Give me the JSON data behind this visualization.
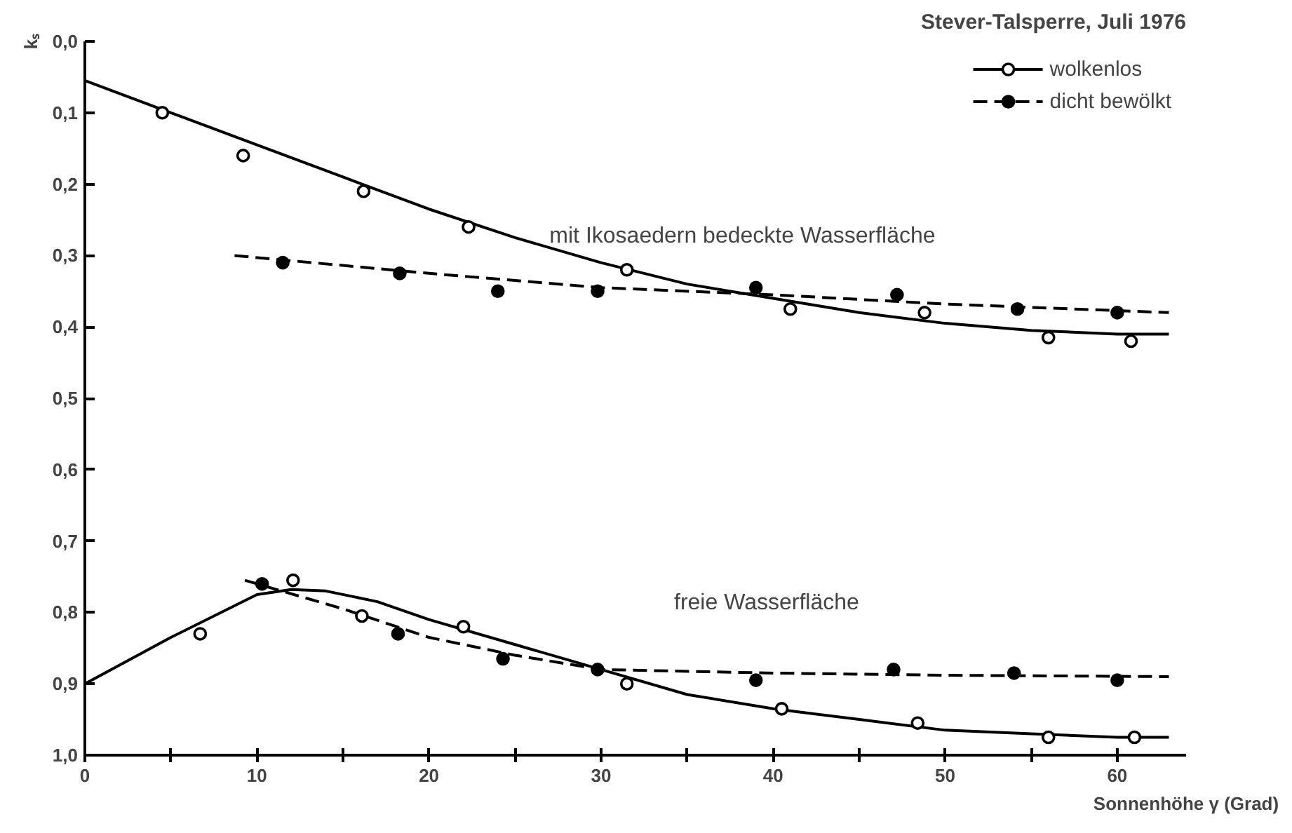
{
  "chart_data": {
    "type": "scatter",
    "title": "Stever-Talsperre, Juli 1976",
    "xlabel": "Sonnenhöhe γ (Grad)",
    "ylabel": "kₛ",
    "xlim": [
      0,
      64
    ],
    "ylim": [
      1.0,
      0.0
    ],
    "xticks": [
      0,
      {
        "value": 5,
        "label": null
      },
      10,
      {
        "value": 15,
        "label": null
      },
      20,
      {
        "value": 25,
        "label": null
      },
      30,
      {
        "value": 35,
        "label": null
      },
      40,
      {
        "value": 45,
        "label": null
      },
      50,
      {
        "value": 55,
        "label": null
      },
      60
    ],
    "yticks": [
      {
        "value": 0.0,
        "label": "0,0"
      },
      {
        "value": 0.1,
        "label": "0,1"
      },
      {
        "value": 0.2,
        "label": "0,2"
      },
      {
        "value": 0.3,
        "label": "0,3"
      },
      {
        "value": 0.4,
        "label": "0,4"
      },
      {
        "value": 0.5,
        "label": "0,5"
      },
      {
        "value": 0.6,
        "label": "0,6"
      },
      {
        "value": 0.7,
        "label": "0,7"
      },
      {
        "value": 0.8,
        "label": "0,8"
      },
      {
        "value": 0.9,
        "label": "0,9"
      },
      {
        "value": 1.0,
        "label": "1,0"
      }
    ],
    "grid": false,
    "legend": "top right",
    "annotations": [
      {
        "text": "mit Ikosaedern bedeckte Wasserfläche",
        "x": 27,
        "y": 0.29
      },
      "freie Wasserfläche"
    ],
    "series": [
      {
        "name": "wolkenlos",
        "marker": "circle",
        "color": "#000000",
        "line_style": "solid",
        "x": [
          4.5,
          9.2,
          16.2,
          22.3,
          31.5,
          41,
          48.8,
          56,
          60.8,
          6.7,
          12.1,
          16.1,
          22,
          31.5,
          40.5,
          48.4,
          56,
          61
        ],
        "values": [
          0.1,
          0.16,
          0.21,
          0.26,
          0.32,
          0.375,
          0.38,
          0.415,
          0.42,
          0.83,
          0.755,
          0.805,
          0.82,
          0.9,
          0.935,
          0.955,
          0.975,
          0.975
        ]
      },
      {
        "name": "dicht bewölkt",
        "marker": "circle",
        "color": "#000000",
        "line_style": "dashed",
        "x": [
          11.5,
          18.3,
          24,
          29.8,
          39,
          47.2,
          54.2,
          60,
          10.3,
          18.2,
          24.3,
          29.8,
          39,
          47,
          54,
          60
        ],
        "values": [
          0.31,
          0.325,
          0.35,
          0.35,
          0.345,
          0.355,
          0.375,
          0.38,
          0.76,
          0.83,
          0.865,
          0.88,
          0.895,
          0.88,
          0.885,
          0.895
        ]
      },
      {
        "type": "line",
        "color": "#000000",
        "line_style": "solid",
        "x": [
          0,
          5,
          10,
          15,
          20,
          25,
          30,
          35,
          40,
          45,
          50,
          55,
          60,
          63
        ],
        "values": [
          0.055,
          0.1,
          0.145,
          0.19,
          0.235,
          0.275,
          0.31,
          0.34,
          0.36,
          0.38,
          0.395,
          0.405,
          0.41,
          0.41
        ]
      },
      {
        "type": "line",
        "color": "#000000",
        "line_style": "dashed",
        "x": [
          8.7,
          20,
          30,
          40,
          50,
          63
        ],
        "values": [
          0.3,
          0.325,
          0.345,
          0.355,
          0.368,
          0.38
        ]
      },
      {
        "type": "line",
        "color": "#000000",
        "line_style": "solid",
        "x": [
          0,
          5,
          10,
          12,
          14,
          17,
          20,
          25,
          30,
          35,
          40,
          45,
          50,
          55,
          60,
          63
        ],
        "values": [
          0.9,
          0.835,
          0.775,
          0.768,
          0.77,
          0.785,
          0.81,
          0.845,
          0.88,
          0.915,
          0.935,
          0.95,
          0.965,
          0.97,
          0.975,
          0.975
        ]
      },
      {
        "type": "line",
        "color": "#000000",
        "line_style": "dashed",
        "x": [
          9.3,
          15,
          20,
          25,
          30,
          40,
          50,
          63
        ],
        "values": [
          0.755,
          0.795,
          0.835,
          0.86,
          0.88,
          0.885,
          0.888,
          0.89
        ]
      }
    ]
  }
}
